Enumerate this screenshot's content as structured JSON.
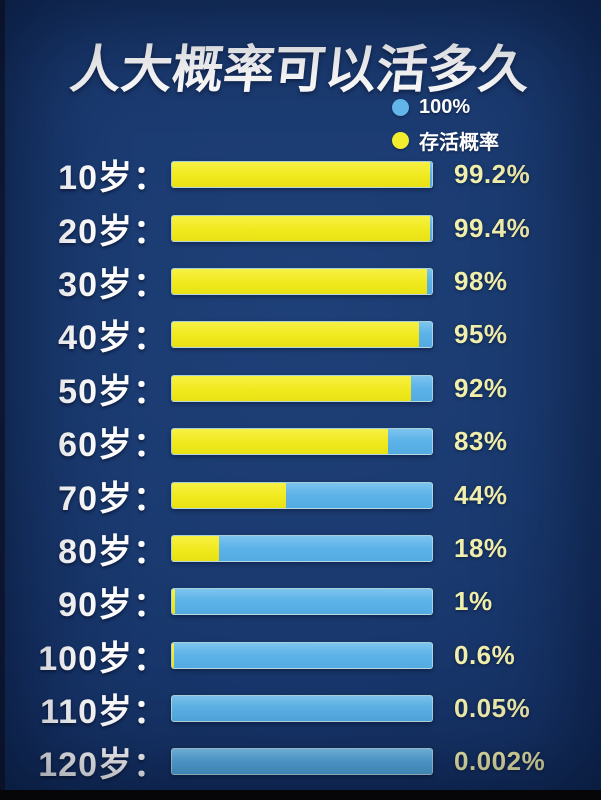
{
  "title": "人大概率可以活多久",
  "legend": {
    "items": [
      {
        "label": "100%",
        "color": "#63b8ec",
        "icon": "blue-circle"
      },
      {
        "label": "存活概率",
        "color": "#f2ee2e",
        "icon": "yellow-circle"
      }
    ]
  },
  "colors": {
    "background": "#173569",
    "bar_blue": "#5db3e8",
    "bar_yellow": "#f0e91d",
    "label_text": "#ffffff",
    "value_text": "#f1efac"
  },
  "chart_data": {
    "type": "bar",
    "orientation": "horizontal",
    "title": "人大概率可以活多久",
    "categories": [
      "10岁",
      "20岁",
      "30岁",
      "40岁",
      "50岁",
      "60岁",
      "70岁",
      "80岁",
      "90岁",
      "100岁",
      "110岁",
      "120岁"
    ],
    "values": [
      99.2,
      99.4,
      98,
      95,
      92,
      83,
      44,
      18,
      1,
      0.6,
      0.05,
      0.002
    ],
    "value_labels": [
      "99.2%",
      "99.4%",
      "98%",
      "95%",
      "92%",
      "83%",
      "44%",
      "18%",
      "1%",
      "0.6%",
      "0.05%",
      "0.002%"
    ],
    "xlim": [
      0,
      100
    ],
    "grid": false,
    "legend": [
      "100%",
      "存活概率"
    ],
    "legend_position": "top-right",
    "note": "yellow segment = 存活概率 (survival probability), blue segment = remainder of 100% track"
  },
  "rows": [
    {
      "label": "10岁：",
      "value": 99.2,
      "value_label": "99.2%"
    },
    {
      "label": "20岁：",
      "value": 99.4,
      "value_label": "99.4%"
    },
    {
      "label": "30岁：",
      "value": 98,
      "value_label": "98%"
    },
    {
      "label": "40岁：",
      "value": 95,
      "value_label": "95%"
    },
    {
      "label": "50岁：",
      "value": 92,
      "value_label": "92%"
    },
    {
      "label": "60岁：",
      "value": 83,
      "value_label": "83%"
    },
    {
      "label": "70岁：",
      "value": 44,
      "value_label": "44%"
    },
    {
      "label": "80岁：",
      "value": 18,
      "value_label": "18%"
    },
    {
      "label": "90岁：",
      "value": 1,
      "value_label": "1%"
    },
    {
      "label": "100岁：",
      "value": 0.6,
      "value_label": "0.6%"
    },
    {
      "label": "110岁：",
      "value": 0.05,
      "value_label": "0.05%"
    },
    {
      "label": "120岁：",
      "value": 0.002,
      "value_label": "0.002%"
    }
  ]
}
